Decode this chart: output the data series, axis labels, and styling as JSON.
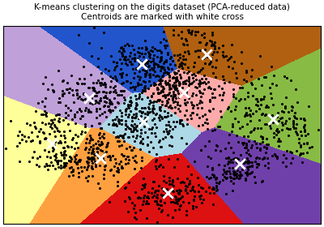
{
  "title_line1": "K-means clustering on the digits dataset (PCA-reduced data)",
  "title_line2": "Centroids are marked with white cross",
  "n_clusters": 10,
  "n_components": 2,
  "figsize": [
    4.0,
    2.8
  ],
  "dpi": 100,
  "random_state": 42,
  "cluster_colors": [
    "#add8e6",
    "#ffff99",
    "#ffa040",
    "#dd1111",
    "#7040aa",
    "#88bb44",
    "#ffaaaa",
    "#b06010",
    "#2255cc",
    "#c0a0d8"
  ],
  "dot_color": "black",
  "dot_size": 1.5,
  "centroid_color": "white",
  "centroid_marker": "x",
  "centroid_size": 80,
  "centroid_lw": 2,
  "title_fontsize": 7.5
}
